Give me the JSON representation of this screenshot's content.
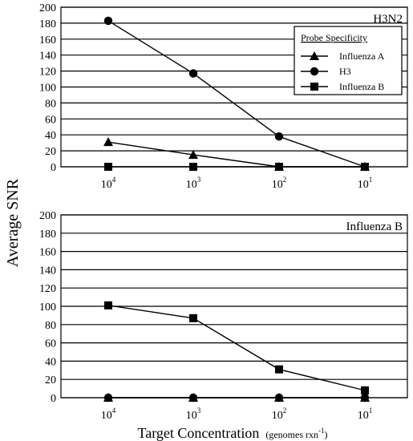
{
  "chart_data": [
    {
      "type": "line",
      "panel_label": "H3N2",
      "categories": [
        "10^4",
        "10^3",
        "10^2",
        "10^1"
      ],
      "ylim": [
        0,
        200
      ],
      "ytick_step": 20,
      "grid": true,
      "series": [
        {
          "name": "Influenza A",
          "marker": "triangle",
          "values": [
            31,
            15,
            0,
            0
          ]
        },
        {
          "name": "H3",
          "marker": "circle",
          "values": [
            183,
            117,
            38,
            0
          ]
        },
        {
          "name": "Influenza B",
          "marker": "square",
          "values": [
            0,
            0,
            0,
            0
          ]
        }
      ],
      "legend": {
        "title": "Probe Specificity",
        "position": "top-right"
      }
    },
    {
      "type": "line",
      "panel_label": "Influenza B",
      "categories": [
        "10^4",
        "10^3",
        "10^2",
        "10^1"
      ],
      "ylim": [
        0,
        200
      ],
      "ytick_step": 20,
      "grid": true,
      "series": [
        {
          "name": "Influenza A",
          "marker": "triangle",
          "values": [
            0,
            0,
            0,
            0
          ]
        },
        {
          "name": "H3",
          "marker": "circle",
          "values": [
            0,
            0,
            0,
            0
          ]
        },
        {
          "name": "Influenza B",
          "marker": "square",
          "values": [
            101,
            87,
            31,
            8
          ]
        }
      ]
    }
  ],
  "ylabel": "Average SNR",
  "xlabel": {
    "main": "Target Concentration",
    "unit": "genomes rxn",
    "unit_exponent": "-1"
  },
  "category_labels": [
    {
      "base": "10",
      "exp": "4"
    },
    {
      "base": "10",
      "exp": "3"
    },
    {
      "base": "10",
      "exp": "2"
    },
    {
      "base": "10",
      "exp": "1"
    }
  ]
}
